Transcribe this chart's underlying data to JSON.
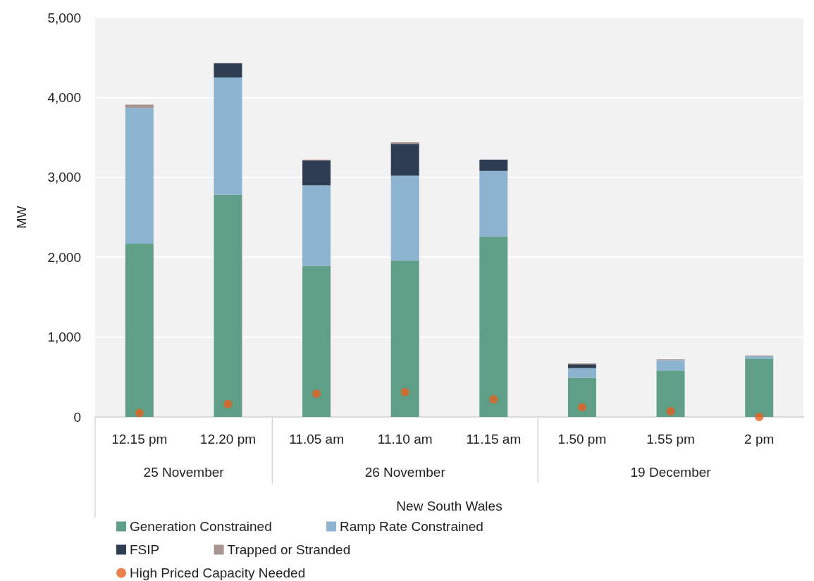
{
  "chart_data": {
    "type": "bar",
    "ylabel": "MW",
    "stacked": true,
    "categories": [
      "12.15 pm",
      "12.20 pm",
      "11.05 am",
      "11.10 am",
      "11.15 am",
      "1.50 pm",
      "1.55 pm",
      "2 pm"
    ],
    "series": [
      {
        "name": "Generation Constrained",
        "color": "#5f9f88",
        "values": [
          2170,
          2780,
          1890,
          1960,
          2260,
          490,
          580,
          730
        ]
      },
      {
        "name": "Ramp Rate Constrained",
        "color": "#8cb3d0",
        "values": [
          1700,
          1470,
          1010,
          1060,
          820,
          120,
          130,
          30
        ]
      },
      {
        "name": "FSIP",
        "color": "#2e3d51",
        "values": [
          0,
          180,
          310,
          400,
          140,
          50,
          0,
          0
        ]
      },
      {
        "name": "Trapped or Stranded",
        "color": "#a89490",
        "values": [
          40,
          0,
          10,
          20,
          0,
          10,
          10,
          10
        ]
      },
      {
        "name": "High Priced Capacity Needed",
        "type": "scatter",
        "marker": "circle",
        "color": "#e2611f",
        "x": [
          "12.15 pm",
          "12.20 pm",
          "11.05 am",
          "11.10 am",
          "11.15 am",
          "1.50 pm",
          "1.55 pm",
          "2 pm"
        ],
        "values": [
          50,
          160,
          290,
          310,
          220,
          120,
          70,
          0
        ]
      }
    ],
    "ylim": [
      0,
      5000
    ],
    "yticks": [
      0,
      {
        "value": 1000,
        "label": "1,000"
      },
      {
        "value": 2000,
        "label": "2,000"
      },
      {
        "value": 3000,
        "label": "3,000"
      },
      {
        "value": 4000,
        "label": "4,000"
      },
      {
        "value": 5000,
        "label": "5,000"
      }
    ],
    "grid": "y",
    "legend": "bottom",
    "annotations": [
      "25 November",
      "26 November",
      "19 December",
      "New South Wales"
    ]
  }
}
